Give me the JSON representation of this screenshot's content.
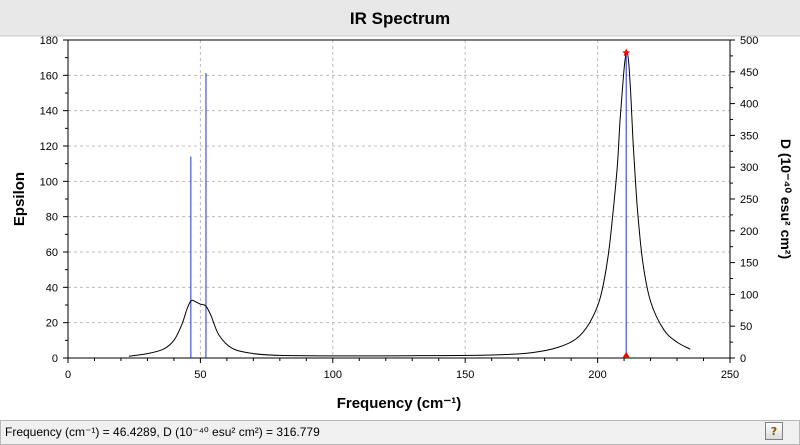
{
  "window": {
    "status_text": "Frequency (cm⁻¹) = 46.4289, D (10⁻⁴⁰ esu² cm²) = 316.779",
    "help_icon": "question-mark-icon"
  },
  "chart_data": {
    "type": "line",
    "title": "IR Spectrum",
    "xlabel": "Frequency (cm⁻¹)",
    "ylabel": "Epsilon",
    "y2label": "D (10⁻⁴⁰ esu² cm²)",
    "xlim": [
      0,
      250
    ],
    "ylim": [
      0,
      180
    ],
    "y2lim": [
      0,
      500
    ],
    "x_ticks": [
      0,
      50,
      100,
      150,
      200,
      250
    ],
    "y_ticks": [
      0,
      20,
      40,
      60,
      80,
      100,
      120,
      140,
      160,
      180
    ],
    "y2_ticks": [
      0,
      50,
      100,
      150,
      200,
      250,
      300,
      350,
      400,
      450,
      500
    ],
    "grid": true,
    "spectrum": {
      "x": [
        23,
        30,
        36,
        40,
        43,
        45,
        46.5,
        48,
        50,
        52,
        54,
        57,
        62,
        70,
        80,
        100,
        130,
        160,
        175,
        185,
        192,
        197,
        201,
        204,
        206,
        207.5,
        208.5,
        209.5,
        210.3,
        211,
        211.7,
        212.5,
        213.5,
        215,
        217,
        220,
        225,
        230,
        235
      ],
      "y": [
        1,
        2.5,
        5,
        10,
        19,
        28,
        32.5,
        32,
        30.5,
        29.5,
        24,
        13,
        5.5,
        2.5,
        1.5,
        1.2,
        1.3,
        1.7,
        3,
        6,
        11,
        20,
        34,
        58,
        85,
        110,
        135,
        155,
        168,
        173,
        168,
        150,
        120,
        85,
        55,
        32,
        16,
        9,
        5
      ]
    },
    "sticks": [
      {
        "x": 46.4,
        "d": 316.779
      },
      {
        "x": 52.1,
        "d": 448
      },
      {
        "x": 210.8,
        "d": 478
      }
    ],
    "selected_peak": {
      "x": 210.8,
      "y": 173
    },
    "colors": {
      "spectrum": "#000000",
      "sticks": "#2233cc",
      "marker": "#ff0000",
      "grid": "#bcbcbc",
      "plot_background": "#ffffff",
      "title_bar": "#e8e8e8"
    }
  }
}
